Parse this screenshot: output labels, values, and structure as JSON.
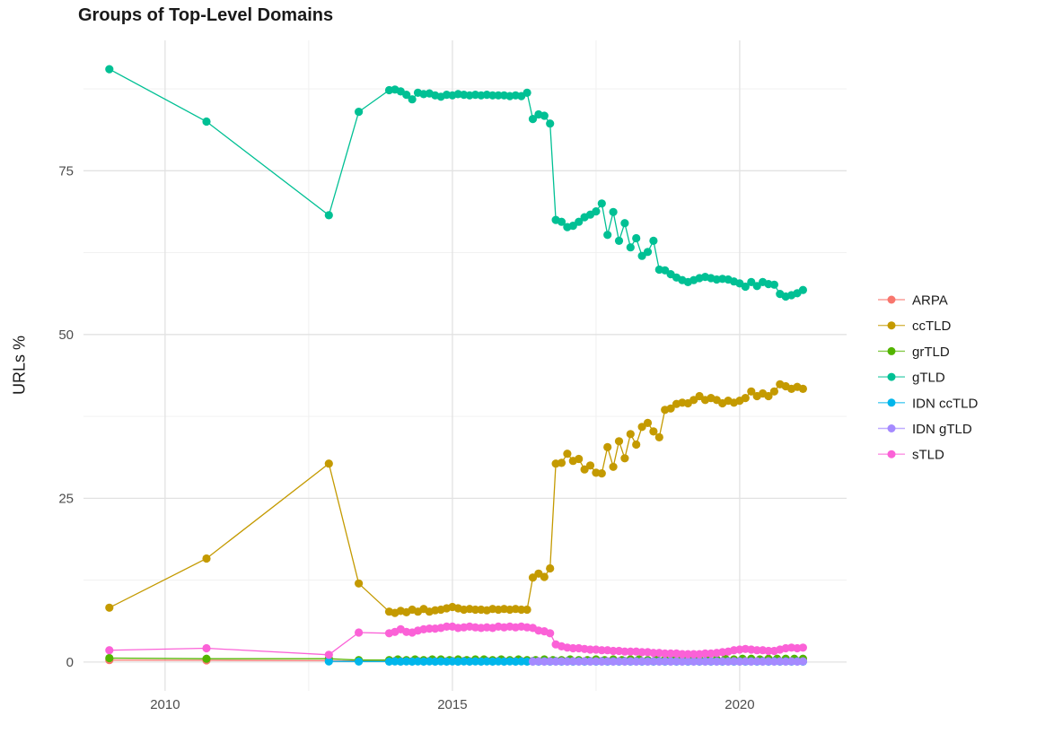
{
  "page": {
    "background": "#ffffff"
  },
  "text_colors": {
    "title": "#1a1a1a",
    "axis_tick": "#4d4d4d",
    "legend": "#1a1a1a"
  },
  "grid_colors": {
    "major": "#e2e2e2",
    "minor": "#efefef"
  },
  "chart_data": {
    "type": "line",
    "title": "Groups of Top-Level Domains",
    "xlabel": "",
    "ylabel": "URLs %",
    "grid": "on",
    "legend_position": "right",
    "xlim": [
      2008.58,
      2021.86
    ],
    "ylim": [
      -4.4,
      94.9
    ],
    "x_ticks": [
      2010,
      2015,
      2020
    ],
    "x_minor": [
      2012.5,
      2017.5
    ],
    "y_ticks": [
      0,
      25,
      50,
      75
    ],
    "y_minor": [
      12.5,
      37.5,
      62.5,
      87.5
    ],
    "marker_radius": 4.6,
    "line_width": 1.3,
    "series": [
      {
        "name": "ARPA",
        "color": "#F8766D",
        "points": [
          [
            2009.03,
            0.3
          ],
          [
            2010.72,
            0.25
          ],
          [
            2012.85,
            0.2
          ],
          [
            2013.37,
            0.15
          ]
        ],
        "fill": {
          "from": 2013.9,
          "to": 2021.1,
          "step": 0.1,
          "value": 0.12
        }
      },
      {
        "name": "ccTLD",
        "color": "#C49A00",
        "points": [
          [
            2009.03,
            8.3
          ],
          [
            2010.72,
            15.8
          ],
          [
            2012.85,
            30.3
          ],
          [
            2013.37,
            12.0
          ],
          [
            2013.9,
            7.7
          ],
          [
            2014.0,
            7.5
          ],
          [
            2014.1,
            7.8
          ],
          [
            2014.2,
            7.6
          ],
          [
            2014.3,
            8.0
          ],
          [
            2014.4,
            7.7
          ],
          [
            2014.5,
            8.1
          ],
          [
            2014.6,
            7.7
          ],
          [
            2014.7,
            7.9
          ],
          [
            2014.8,
            8.0
          ],
          [
            2014.9,
            8.2
          ],
          [
            2015.0,
            8.4
          ],
          [
            2015.1,
            8.2
          ],
          [
            2015.2,
            8.0
          ],
          [
            2015.3,
            8.1
          ],
          [
            2015.4,
            8.0
          ],
          [
            2015.5,
            8.0
          ],
          [
            2015.6,
            7.9
          ],
          [
            2015.7,
            8.1
          ],
          [
            2015.8,
            8.0
          ],
          [
            2015.9,
            8.1
          ],
          [
            2016.0,
            8.0
          ],
          [
            2016.1,
            8.1
          ],
          [
            2016.2,
            8.0
          ],
          [
            2016.3,
            8.0
          ],
          [
            2016.4,
            12.9
          ],
          [
            2016.5,
            13.5
          ],
          [
            2016.6,
            13.0
          ],
          [
            2016.7,
            14.3
          ],
          [
            2016.8,
            30.3
          ],
          [
            2016.9,
            30.4
          ],
          [
            2017.0,
            31.8
          ],
          [
            2017.1,
            30.7
          ],
          [
            2017.2,
            31.0
          ],
          [
            2017.3,
            29.4
          ],
          [
            2017.4,
            30.0
          ],
          [
            2017.5,
            28.9
          ],
          [
            2017.6,
            28.8
          ],
          [
            2017.7,
            32.8
          ],
          [
            2017.8,
            29.8
          ],
          [
            2017.9,
            33.7
          ],
          [
            2018.0,
            31.1
          ],
          [
            2018.1,
            34.8
          ],
          [
            2018.2,
            33.2
          ],
          [
            2018.3,
            35.9
          ],
          [
            2018.4,
            36.5
          ],
          [
            2018.5,
            35.2
          ],
          [
            2018.6,
            34.3
          ],
          [
            2018.7,
            38.5
          ],
          [
            2018.8,
            38.7
          ],
          [
            2018.9,
            39.4
          ],
          [
            2019.0,
            39.6
          ],
          [
            2019.1,
            39.5
          ],
          [
            2019.2,
            40.0
          ],
          [
            2019.3,
            40.6
          ],
          [
            2019.4,
            40.0
          ],
          [
            2019.5,
            40.3
          ],
          [
            2019.6,
            40.0
          ],
          [
            2019.7,
            39.5
          ],
          [
            2019.8,
            39.9
          ],
          [
            2019.9,
            39.6
          ],
          [
            2020.0,
            39.9
          ],
          [
            2020.1,
            40.3
          ],
          [
            2020.2,
            41.3
          ],
          [
            2020.3,
            40.6
          ],
          [
            2020.4,
            41.0
          ],
          [
            2020.5,
            40.6
          ],
          [
            2020.6,
            41.3
          ],
          [
            2020.7,
            42.4
          ],
          [
            2020.8,
            42.1
          ],
          [
            2020.9,
            41.7
          ],
          [
            2021.0,
            42.0
          ],
          [
            2021.1,
            41.7
          ]
        ]
      },
      {
        "name": "grTLD",
        "color": "#53B400",
        "points": [
          [
            2009.03,
            0.6
          ],
          [
            2010.72,
            0.5
          ],
          [
            2012.85,
            0.5
          ],
          [
            2013.37,
            0.3
          ],
          [
            2013.9,
            0.3
          ],
          [
            2014.05,
            0.4
          ],
          [
            2014.2,
            0.3
          ],
          [
            2014.35,
            0.4
          ],
          [
            2014.5,
            0.3
          ],
          [
            2014.65,
            0.4
          ],
          [
            2014.8,
            0.4
          ],
          [
            2014.95,
            0.3
          ],
          [
            2015.1,
            0.4
          ],
          [
            2015.25,
            0.3
          ],
          [
            2015.4,
            0.4
          ],
          [
            2015.55,
            0.4
          ],
          [
            2015.7,
            0.3
          ],
          [
            2015.85,
            0.4
          ],
          [
            2016.0,
            0.3
          ],
          [
            2016.15,
            0.4
          ],
          [
            2016.3,
            0.3
          ],
          [
            2016.45,
            0.3
          ],
          [
            2016.6,
            0.4
          ],
          [
            2016.75,
            0.3
          ],
          [
            2016.9,
            0.3
          ],
          [
            2017.05,
            0.4
          ],
          [
            2017.2,
            0.3
          ],
          [
            2017.35,
            0.3
          ],
          [
            2017.5,
            0.4
          ],
          [
            2017.65,
            0.3
          ],
          [
            2017.8,
            0.4
          ],
          [
            2017.95,
            0.3
          ],
          [
            2018.1,
            0.4
          ],
          [
            2018.25,
            0.4
          ],
          [
            2018.4,
            0.3
          ],
          [
            2018.55,
            0.4
          ],
          [
            2018.7,
            0.4
          ],
          [
            2018.85,
            0.4
          ],
          [
            2019.0,
            0.5
          ],
          [
            2019.15,
            0.4
          ],
          [
            2019.3,
            0.4
          ],
          [
            2019.45,
            0.5
          ],
          [
            2019.6,
            0.4
          ],
          [
            2019.75,
            0.5
          ],
          [
            2019.9,
            0.4
          ],
          [
            2020.05,
            0.5
          ],
          [
            2020.2,
            0.5
          ],
          [
            2020.35,
            0.4
          ],
          [
            2020.5,
            0.5
          ],
          [
            2020.65,
            0.5
          ],
          [
            2020.8,
            0.5
          ],
          [
            2020.95,
            0.5
          ],
          [
            2021.1,
            0.5
          ]
        ]
      },
      {
        "name": "gTLD",
        "color": "#00C094",
        "points": [
          [
            2009.03,
            90.5
          ],
          [
            2010.72,
            82.5
          ],
          [
            2012.85,
            68.2
          ],
          [
            2013.37,
            84.0
          ],
          [
            2013.9,
            87.3
          ],
          [
            2014.0,
            87.4
          ],
          [
            2014.1,
            87.1
          ],
          [
            2014.2,
            86.6
          ],
          [
            2014.3,
            85.9
          ],
          [
            2014.4,
            86.9
          ],
          [
            2014.5,
            86.7
          ],
          [
            2014.6,
            86.8
          ],
          [
            2014.7,
            86.5
          ],
          [
            2014.8,
            86.3
          ],
          [
            2014.9,
            86.6
          ],
          [
            2015.0,
            86.5
          ],
          [
            2015.1,
            86.7
          ],
          [
            2015.2,
            86.6
          ],
          [
            2015.3,
            86.5
          ],
          [
            2015.4,
            86.6
          ],
          [
            2015.5,
            86.5
          ],
          [
            2015.6,
            86.6
          ],
          [
            2015.7,
            86.5
          ],
          [
            2015.8,
            86.5
          ],
          [
            2015.9,
            86.5
          ],
          [
            2016.0,
            86.4
          ],
          [
            2016.1,
            86.5
          ],
          [
            2016.2,
            86.4
          ],
          [
            2016.3,
            86.9
          ],
          [
            2016.4,
            82.9
          ],
          [
            2016.5,
            83.6
          ],
          [
            2016.6,
            83.4
          ],
          [
            2016.7,
            82.2
          ],
          [
            2016.8,
            67.5
          ],
          [
            2016.9,
            67.2
          ],
          [
            2017.0,
            66.4
          ],
          [
            2017.1,
            66.6
          ],
          [
            2017.2,
            67.2
          ],
          [
            2017.3,
            67.9
          ],
          [
            2017.4,
            68.3
          ],
          [
            2017.5,
            68.8
          ],
          [
            2017.6,
            70.0
          ],
          [
            2017.7,
            65.2
          ],
          [
            2017.8,
            68.7
          ],
          [
            2017.9,
            64.3
          ],
          [
            2018.0,
            67.0
          ],
          [
            2018.1,
            63.3
          ],
          [
            2018.2,
            64.7
          ],
          [
            2018.3,
            62.0
          ],
          [
            2018.4,
            62.6
          ],
          [
            2018.5,
            64.3
          ],
          [
            2018.6,
            59.9
          ],
          [
            2018.7,
            59.8
          ],
          [
            2018.8,
            59.2
          ],
          [
            2018.9,
            58.7
          ],
          [
            2019.0,
            58.3
          ],
          [
            2019.1,
            58.0
          ],
          [
            2019.2,
            58.3
          ],
          [
            2019.3,
            58.6
          ],
          [
            2019.4,
            58.8
          ],
          [
            2019.5,
            58.6
          ],
          [
            2019.6,
            58.4
          ],
          [
            2019.7,
            58.5
          ],
          [
            2019.8,
            58.4
          ],
          [
            2019.9,
            58.1
          ],
          [
            2020.0,
            57.8
          ],
          [
            2020.1,
            57.3
          ],
          [
            2020.2,
            58.0
          ],
          [
            2020.3,
            57.4
          ],
          [
            2020.4,
            58.0
          ],
          [
            2020.5,
            57.7
          ],
          [
            2020.6,
            57.6
          ],
          [
            2020.7,
            56.2
          ],
          [
            2020.8,
            55.8
          ],
          [
            2020.9,
            56.0
          ],
          [
            2021.0,
            56.3
          ],
          [
            2021.1,
            56.8
          ]
        ]
      },
      {
        "name": "IDN ccTLD",
        "color": "#00B6EB",
        "points": [
          [
            2012.85,
            0.1
          ],
          [
            2013.37,
            0.08
          ]
        ],
        "fill": {
          "from": 2013.9,
          "to": 2021.1,
          "step": 0.1,
          "value": 0.07
        }
      },
      {
        "name": "IDN gTLD",
        "color": "#A58AFF",
        "points": [],
        "fill": {
          "from": 2016.4,
          "to": 2021.1,
          "step": 0.1,
          "value": 0.07
        }
      },
      {
        "name": "sTLD",
        "color": "#FB61D7",
        "points": [
          [
            2009.03,
            1.8
          ],
          [
            2010.72,
            2.1
          ],
          [
            2012.85,
            1.1
          ],
          [
            2013.37,
            4.5
          ],
          [
            2013.9,
            4.4
          ],
          [
            2014.0,
            4.6
          ],
          [
            2014.1,
            5.0
          ],
          [
            2014.2,
            4.6
          ],
          [
            2014.3,
            4.5
          ],
          [
            2014.4,
            4.8
          ],
          [
            2014.5,
            5.0
          ],
          [
            2014.6,
            5.1
          ],
          [
            2014.7,
            5.1
          ],
          [
            2014.8,
            5.2
          ],
          [
            2014.9,
            5.4
          ],
          [
            2015.0,
            5.4
          ],
          [
            2015.1,
            5.2
          ],
          [
            2015.2,
            5.3
          ],
          [
            2015.3,
            5.4
          ],
          [
            2015.4,
            5.3
          ],
          [
            2015.5,
            5.2
          ],
          [
            2015.6,
            5.3
          ],
          [
            2015.7,
            5.2
          ],
          [
            2015.8,
            5.4
          ],
          [
            2015.9,
            5.3
          ],
          [
            2016.0,
            5.4
          ],
          [
            2016.1,
            5.3
          ],
          [
            2016.2,
            5.4
          ],
          [
            2016.3,
            5.3
          ],
          [
            2016.4,
            5.2
          ],
          [
            2016.5,
            4.8
          ],
          [
            2016.6,
            4.7
          ],
          [
            2016.7,
            4.4
          ],
          [
            2016.8,
            2.7
          ],
          [
            2016.9,
            2.4
          ],
          [
            2017.0,
            2.2
          ],
          [
            2017.1,
            2.1
          ],
          [
            2017.2,
            2.1
          ],
          [
            2017.3,
            2.0
          ],
          [
            2017.4,
            1.9
          ],
          [
            2017.5,
            1.9
          ],
          [
            2017.6,
            1.8
          ],
          [
            2017.7,
            1.8
          ],
          [
            2017.8,
            1.7
          ],
          [
            2017.9,
            1.7
          ],
          [
            2018.0,
            1.6
          ],
          [
            2018.1,
            1.6
          ],
          [
            2018.2,
            1.6
          ],
          [
            2018.3,
            1.5
          ],
          [
            2018.4,
            1.5
          ],
          [
            2018.5,
            1.4
          ],
          [
            2018.6,
            1.4
          ],
          [
            2018.7,
            1.3
          ],
          [
            2018.8,
            1.3
          ],
          [
            2018.9,
            1.3
          ],
          [
            2019.0,
            1.2
          ],
          [
            2019.1,
            1.2
          ],
          [
            2019.2,
            1.2
          ],
          [
            2019.3,
            1.2
          ],
          [
            2019.4,
            1.3
          ],
          [
            2019.5,
            1.3
          ],
          [
            2019.6,
            1.4
          ],
          [
            2019.7,
            1.5
          ],
          [
            2019.8,
            1.6
          ],
          [
            2019.9,
            1.8
          ],
          [
            2020.0,
            1.9
          ],
          [
            2020.1,
            2.0
          ],
          [
            2020.2,
            1.9
          ],
          [
            2020.3,
            1.8
          ],
          [
            2020.4,
            1.8
          ],
          [
            2020.5,
            1.7
          ],
          [
            2020.6,
            1.7
          ],
          [
            2020.7,
            1.9
          ],
          [
            2020.8,
            2.1
          ],
          [
            2020.9,
            2.2
          ],
          [
            2021.0,
            2.1
          ],
          [
            2021.1,
            2.2
          ]
        ]
      }
    ]
  }
}
